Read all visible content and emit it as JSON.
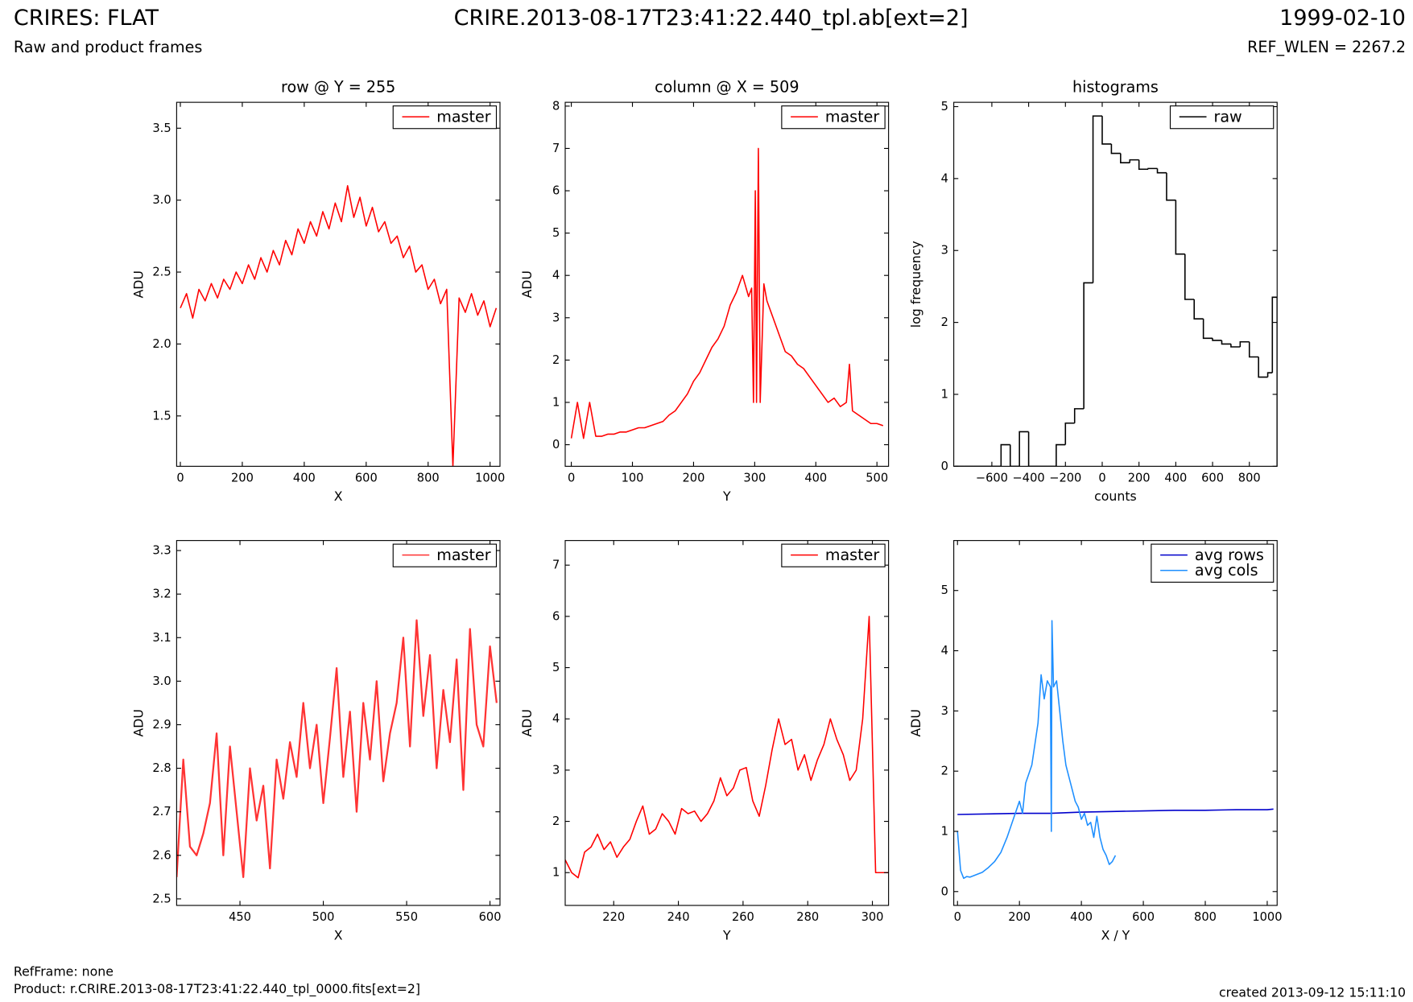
{
  "header": {
    "left_title": "CRIRES: FLAT",
    "center_title": "CRIRE.2013-08-17T23:41:22.440_tpl.ab[ext=2]",
    "date": "1999-02-10",
    "subtitle": "Raw and product frames",
    "ref_wlen": "REF_WLEN = 2267.2"
  },
  "footer": {
    "ref_frame": "RefFrame: none",
    "product": "Product: r.CRIRE.2013-08-17T23:41:22.440_tpl_0000.fits[ext=2]",
    "created": "created 2013-09-12 15:11:10"
  },
  "chart_data": [
    {
      "type": "line",
      "title": "row @ Y = 255",
      "xlabel": "X",
      "ylabel": "ADU",
      "legend": "upper right",
      "xlim": [
        -12,
        1032
      ],
      "xticks": [
        0,
        200,
        400,
        600,
        800,
        1000
      ],
      "ylim": [
        1.15,
        3.68
      ],
      "yticks": [
        1.5,
        {
          "value": 2.0,
          "label": "2.0"
        },
        2.5,
        {
          "value": 3.0,
          "label": "3.0"
        },
        3.5
      ],
      "series": [
        {
          "name": "master",
          "color": "#ff0000",
          "x": [
            0,
            20,
            40,
            60,
            80,
            100,
            120,
            140,
            160,
            180,
            200,
            220,
            240,
            260,
            280,
            300,
            320,
            340,
            360,
            380,
            400,
            420,
            440,
            460,
            480,
            500,
            520,
            540,
            560,
            580,
            600,
            620,
            640,
            660,
            680,
            700,
            720,
            740,
            760,
            780,
            800,
            820,
            840,
            860,
            880,
            900,
            920,
            940,
            960,
            980,
            1000,
            1020
          ],
          "values": [
            2.25,
            2.35,
            2.18,
            2.38,
            2.3,
            2.42,
            2.32,
            2.45,
            2.38,
            2.5,
            2.42,
            2.55,
            2.45,
            2.6,
            2.5,
            2.65,
            2.55,
            2.72,
            2.62,
            2.8,
            2.7,
            2.85,
            2.75,
            2.92,
            2.8,
            2.98,
            2.85,
            3.1,
            2.88,
            3.02,
            2.82,
            2.95,
            2.78,
            2.85,
            2.7,
            2.75,
            2.6,
            2.68,
            2.5,
            2.55,
            2.38,
            2.45,
            2.28,
            2.38,
            1.15,
            2.32,
            2.22,
            2.35,
            2.2,
            2.3,
            2.12,
            2.25
          ]
        }
      ]
    },
    {
      "type": "line",
      "title": "column @ X = 509",
      "xlabel": "Y",
      "ylabel": "ADU",
      "legend": "upper right",
      "xlim": [
        -10,
        519
      ],
      "xticks": [
        0,
        100,
        200,
        300,
        400,
        500
      ],
      "ylim": [
        -0.51,
        8.09
      ],
      "yticks": [
        0,
        1,
        2,
        3,
        4,
        5,
        6,
        7,
        8
      ],
      "series": [
        {
          "name": "master",
          "color": "#ff0000",
          "x": [
            0,
            10,
            20,
            30,
            40,
            50,
            60,
            70,
            80,
            90,
            100,
            110,
            120,
            130,
            140,
            150,
            160,
            170,
            180,
            190,
            200,
            210,
            220,
            230,
            240,
            250,
            260,
            270,
            280,
            290,
            295,
            298,
            301,
            303,
            306,
            309,
            315,
            320,
            330,
            340,
            350,
            360,
            370,
            380,
            390,
            400,
            410,
            420,
            430,
            440,
            450,
            455,
            460,
            470,
            480,
            490,
            500,
            510
          ],
          "values": [
            0.15,
            1.0,
            0.15,
            1.0,
            0.2,
            0.2,
            0.25,
            0.25,
            0.3,
            0.3,
            0.35,
            0.4,
            0.4,
            0.45,
            0.5,
            0.55,
            0.7,
            0.8,
            1.0,
            1.2,
            1.5,
            1.7,
            2.0,
            2.3,
            2.5,
            2.8,
            3.3,
            3.6,
            4.0,
            3.5,
            3.7,
            1.0,
            6.0,
            1.0,
            7.0,
            1.0,
            3.8,
            3.4,
            3.0,
            2.6,
            2.2,
            2.1,
            1.9,
            1.8,
            1.6,
            1.4,
            1.2,
            1.0,
            1.1,
            0.9,
            1.0,
            1.9,
            0.8,
            0.7,
            0.6,
            0.5,
            0.5,
            0.45
          ]
        }
      ]
    },
    {
      "type": "histogram",
      "title": "histograms",
      "xlabel": "counts",
      "ylabel": "log frequency",
      "legend": "upper right",
      "xlim": [
        -807,
        951
      ],
      "xticks": [
        {
          "value": -600,
          "label": "−600"
        },
        {
          "value": -400,
          "label": "−400"
        },
        {
          "value": -200,
          "label": "−200"
        },
        0,
        200,
        400,
        600,
        800
      ],
      "ylim": [
        0,
        5.06
      ],
      "yticks": [
        0,
        1,
        2,
        3,
        4,
        5
      ],
      "bins": [
        -800,
        -750,
        -700,
        -650,
        -600,
        -550,
        -500,
        -450,
        -400,
        -350,
        -300,
        -250,
        -200,
        -150,
        -100,
        -50,
        0,
        50,
        100,
        150,
        200,
        250,
        300,
        350,
        400,
        450,
        500,
        550,
        600,
        650,
        700,
        750,
        800,
        850,
        900,
        925,
        951
      ],
      "series": [
        {
          "name": "raw",
          "color": "#000000",
          "values": [
            0,
            0,
            0,
            0,
            0,
            0.3,
            0,
            0.48,
            0,
            0,
            0,
            0.3,
            0.6,
            0.8,
            2.55,
            4.87,
            4.48,
            4.35,
            4.22,
            4.26,
            4.13,
            4.14,
            4.08,
            3.7,
            2.95,
            2.32,
            2.05,
            1.78,
            1.75,
            1.7,
            1.66,
            1.73,
            1.52,
            1.24,
            1.3,
            2.35
          ]
        }
      ]
    },
    {
      "type": "line",
      "xlabel": "X",
      "ylabel": "ADU",
      "legend": "upper right",
      "xlim": [
        412,
        606
      ],
      "xticks": [
        450,
        500,
        550,
        600
      ],
      "ylim": [
        2.485,
        3.323
      ],
      "yticks": [
        2.5,
        2.6,
        2.7,
        2.8,
        2.9,
        {
          "value": 3.0,
          "label": "3.0"
        },
        3.1,
        3.2,
        3.3
      ],
      "series": [
        {
          "name": "master",
          "color": "#ff3333",
          "x": [
            412,
            416,
            420,
            424,
            428,
            432,
            436,
            440,
            444,
            448,
            452,
            456,
            460,
            464,
            468,
            472,
            476,
            480,
            484,
            488,
            492,
            496,
            500,
            504,
            508,
            512,
            516,
            520,
            524,
            528,
            532,
            536,
            540,
            544,
            548,
            552,
            556,
            560,
            564,
            568,
            572,
            576,
            580,
            584,
            588,
            592,
            596,
            600,
            604
          ],
          "values": [
            2.55,
            2.82,
            2.62,
            2.6,
            2.65,
            2.72,
            2.88,
            2.6,
            2.85,
            2.7,
            2.55,
            2.8,
            2.68,
            2.76,
            2.57,
            2.82,
            2.73,
            2.86,
            2.78,
            2.95,
            2.8,
            2.9,
            2.72,
            2.87,
            3.03,
            2.78,
            2.93,
            2.7,
            2.95,
            2.82,
            3.0,
            2.77,
            2.88,
            2.95,
            3.1,
            2.85,
            3.14,
            2.92,
            3.06,
            2.8,
            2.98,
            2.86,
            3.05,
            2.75,
            3.12,
            2.9,
            2.85,
            3.08,
            2.95
          ]
        }
      ]
    },
    {
      "type": "line",
      "xlabel": "Y",
      "ylabel": "ADU",
      "legend": "upper right",
      "xlim": [
        205,
        305
      ],
      "xticks": [
        220,
        240,
        260,
        280,
        300
      ],
      "ylim": [
        0.36,
        7.48
      ],
      "yticks": [
        1,
        2,
        3,
        4,
        5,
        6,
        7
      ],
      "series": [
        {
          "name": "master",
          "color": "#ff0000",
          "x": [
            205,
            207,
            209,
            211,
            213,
            215,
            217,
            219,
            221,
            223,
            225,
            227,
            229,
            231,
            233,
            235,
            237,
            239,
            241,
            243,
            245,
            247,
            249,
            251,
            253,
            255,
            257,
            259,
            261,
            263,
            265,
            267,
            269,
            271,
            273,
            275,
            277,
            279,
            281,
            283,
            285,
            287,
            289,
            291,
            293,
            295,
            297,
            299,
            301,
            303,
            305
          ],
          "values": [
            1.25,
            1.0,
            0.9,
            1.4,
            1.5,
            1.75,
            1.45,
            1.6,
            1.3,
            1.5,
            1.65,
            2.0,
            2.3,
            1.75,
            1.85,
            2.15,
            2.0,
            1.75,
            2.25,
            2.15,
            2.2,
            2.0,
            2.15,
            2.4,
            2.85,
            2.5,
            2.65,
            3.0,
            3.05,
            2.4,
            2.1,
            2.7,
            3.4,
            4.0,
            3.5,
            3.6,
            3.0,
            3.3,
            2.8,
            3.2,
            3.5,
            4.0,
            3.6,
            3.3,
            2.8,
            3.0,
            4.0,
            6.0,
            1.0,
            1.0,
            1.0
          ]
        }
      ]
    },
    {
      "type": "line",
      "xlabel": "X / Y",
      "ylabel": "ADU",
      "legend": "upper right",
      "xlim": [
        -12,
        1032
      ],
      "xticks": [
        0,
        200,
        400,
        600,
        800,
        1000
      ],
      "ylim": [
        -0.23,
        5.83
      ],
      "yticks": [
        0,
        1,
        2,
        3,
        4,
        5
      ],
      "series": [
        {
          "name": "avg rows",
          "color": "#0000cc",
          "x": [
            0,
            100,
            200,
            300,
            400,
            500,
            600,
            700,
            800,
            900,
            1000,
            1020
          ],
          "values": [
            1.28,
            1.29,
            1.3,
            1.3,
            1.32,
            1.33,
            1.34,
            1.35,
            1.35,
            1.36,
            1.36,
            1.37
          ]
        },
        {
          "name": "avg cols",
          "color": "#1e8fff",
          "x": [
            0,
            10,
            20,
            30,
            40,
            60,
            80,
            100,
            120,
            140,
            160,
            180,
            200,
            210,
            220,
            240,
            260,
            270,
            280,
            290,
            300,
            303,
            305,
            310,
            320,
            330,
            340,
            350,
            360,
            370,
            380,
            390,
            400,
            410,
            420,
            430,
            440,
            450,
            460,
            470,
            480,
            490,
            500,
            510
          ],
          "values": [
            1.0,
            0.35,
            0.22,
            0.25,
            0.24,
            0.28,
            0.32,
            0.4,
            0.5,
            0.65,
            0.9,
            1.2,
            1.5,
            1.3,
            1.8,
            2.1,
            2.8,
            3.6,
            3.2,
            3.5,
            3.4,
            1.0,
            4.5,
            3.4,
            3.5,
            3.0,
            2.5,
            2.1,
            1.9,
            1.7,
            1.5,
            1.4,
            1.2,
            1.3,
            1.1,
            1.15,
            0.9,
            1.25,
            0.9,
            0.7,
            0.6,
            0.45,
            0.5,
            0.6
          ]
        }
      ]
    }
  ]
}
